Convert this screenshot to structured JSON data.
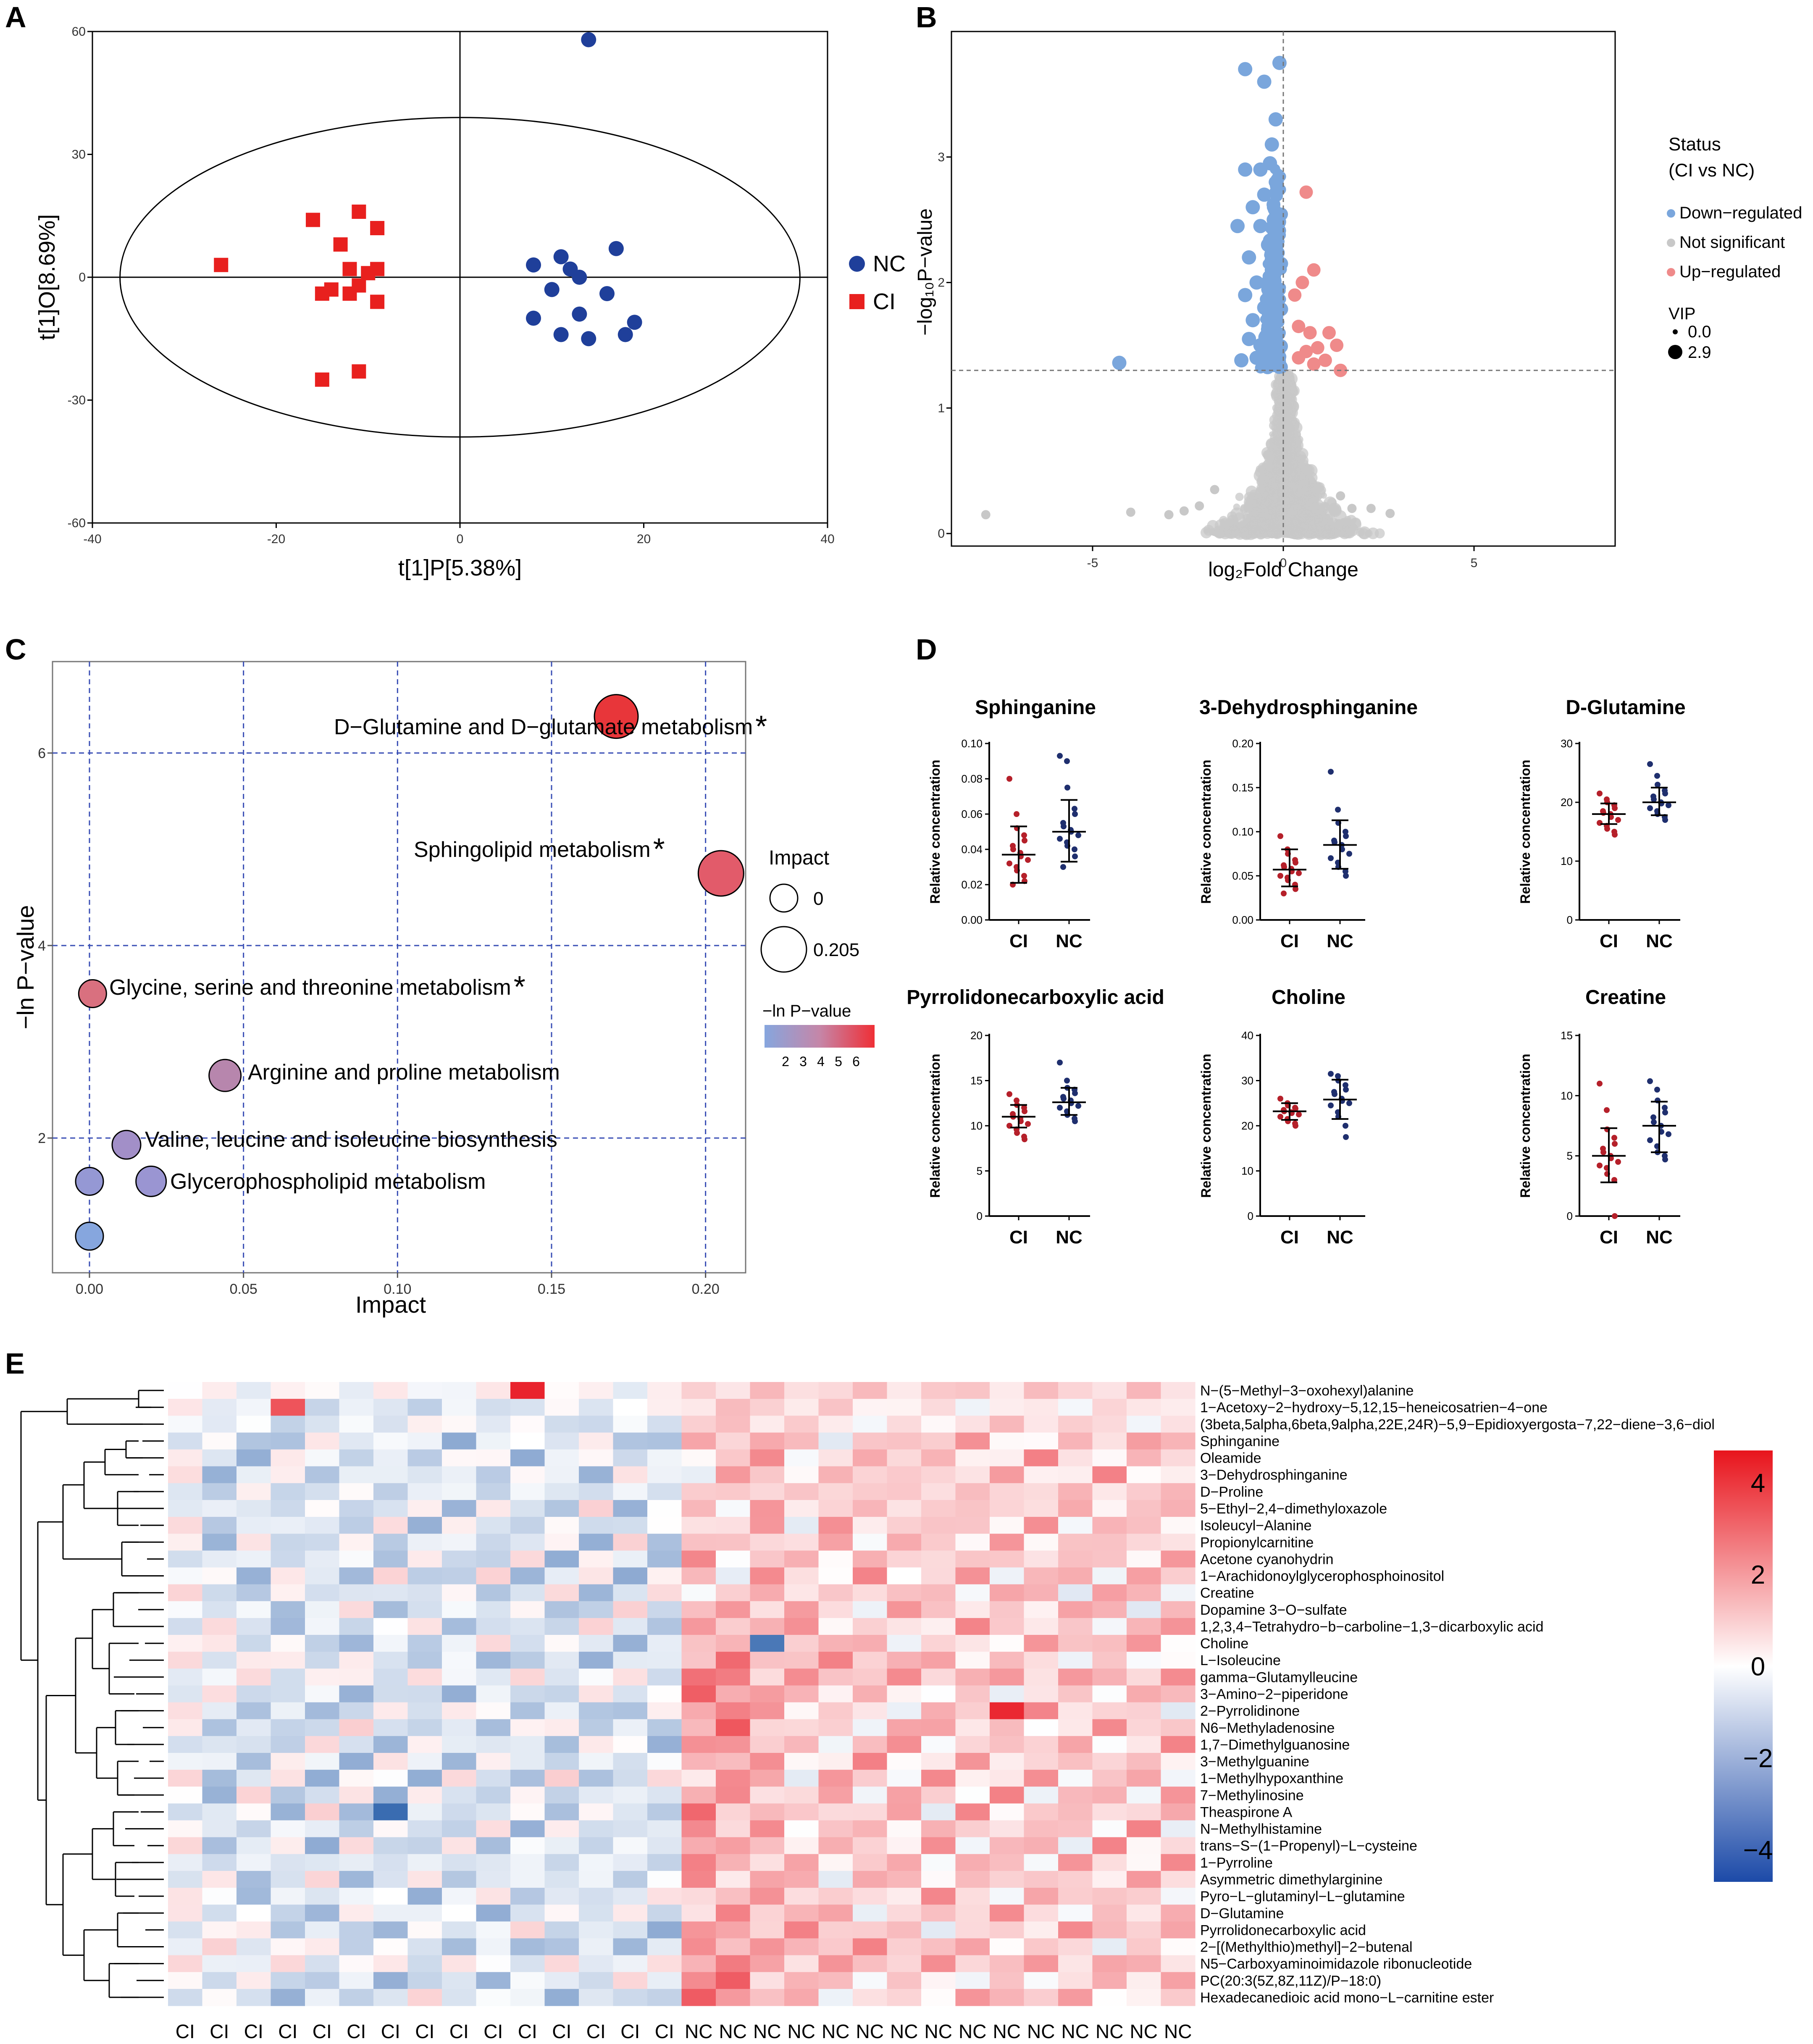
{
  "panels": {
    "A": "A",
    "B": "B",
    "C": "C",
    "D": "D",
    "E": "E"
  },
  "chart_data": [
    {
      "id": "A",
      "type": "scatter",
      "xlabel": "t[1]P[5.38%]",
      "ylabel": "t[1]O[8.69%]",
      "xlim": [
        -40,
        40
      ],
      "ylim": [
        -60,
        60
      ],
      "xticks": [
        -40,
        -20,
        0,
        20,
        40
      ],
      "yticks": [
        60,
        30,
        0,
        -30,
        -60
      ],
      "ellipse": {
        "cx": 0,
        "cy": 0,
        "rx": 37,
        "ry": 39
      },
      "legend": [
        "NC",
        "CI"
      ],
      "colors": {
        "NC": "#1f3f9a",
        "CI": "#e8201e"
      },
      "series": [
        {
          "name": "CI",
          "marker": "square",
          "points": [
            [
              -26,
              3
            ],
            [
              -16,
              14
            ],
            [
              -13,
              8
            ],
            [
              -11,
              16
            ],
            [
              -9,
              12
            ],
            [
              -15,
              -4
            ],
            [
              -12,
              2
            ],
            [
              -14,
              -3
            ],
            [
              -10,
              1
            ],
            [
              -11,
              -2
            ],
            [
              -12,
              -4
            ],
            [
              -9,
              2
            ],
            [
              -9,
              -6
            ],
            [
              -15,
              -25
            ],
            [
              -11,
              -23
            ]
          ]
        },
        {
          "name": "NC",
          "marker": "circle",
          "points": [
            [
              14,
              58
            ],
            [
              8,
              3
            ],
            [
              11,
              5
            ],
            [
              12,
              2
            ],
            [
              13,
              0
            ],
            [
              17,
              7
            ],
            [
              10,
              -3
            ],
            [
              8,
              -10
            ],
            [
              13,
              -9
            ],
            [
              16,
              -4
            ],
            [
              11,
              -14
            ],
            [
              14,
              -15
            ],
            [
              18,
              -14
            ],
            [
              19,
              -11
            ]
          ]
        }
      ]
    },
    {
      "id": "B",
      "type": "scatter",
      "xlabel": "log₂Fold Change",
      "ylabel": "−log₁₀P−value",
      "xlim": [
        -8.7,
        8.7
      ],
      "ylim": [
        -0.1,
        4.0
      ],
      "xticks": [
        -5,
        0,
        5
      ],
      "yticks": [
        0,
        1,
        2,
        3
      ],
      "threshold_y": 1.3,
      "legend_title": "Status",
      "legend_subtitle": "(CI vs NC)",
      "legend": [
        "Down−regulated",
        "Not significant",
        "Up−regulated"
      ],
      "colors": {
        "down": "#7aa6dc",
        "ns": "#c8c8c8",
        "up": "#ef8a8a"
      },
      "vip_title": "VIP",
      "vip_values": [
        "0.0",
        "2.9"
      ],
      "up_points": [
        [
          0.6,
          2.72
        ],
        [
          0.4,
          1.65
        ],
        [
          0.7,
          1.6
        ],
        [
          0.9,
          1.48
        ],
        [
          1.2,
          1.6
        ],
        [
          1.4,
          1.5
        ],
        [
          0.6,
          1.45
        ],
        [
          0.4,
          1.4
        ],
        [
          0.8,
          1.35
        ],
        [
          1.1,
          1.38
        ],
        [
          1.5,
          1.3
        ],
        [
          0.5,
          2.0
        ],
        [
          0.8,
          2.1
        ],
        [
          0.3,
          1.9
        ]
      ],
      "down_points": [
        [
          -1.0,
          3.7
        ],
        [
          -0.1,
          3.75
        ],
        [
          -0.5,
          3.6
        ],
        [
          -0.2,
          3.3
        ],
        [
          -0.3,
          3.1
        ],
        [
          -0.35,
          2.95
        ],
        [
          -0.6,
          2.9
        ],
        [
          -1.0,
          2.9
        ],
        [
          -0.5,
          2.7
        ],
        [
          -0.8,
          2.6
        ],
        [
          -0.25,
          2.5
        ],
        [
          -0.6,
          2.45
        ],
        [
          -1.2,
          2.45
        ],
        [
          -0.4,
          2.3
        ],
        [
          -0.9,
          2.2
        ],
        [
          -0.3,
          2.1
        ],
        [
          -0.7,
          2.0
        ],
        [
          -1.0,
          1.9
        ],
        [
          -0.5,
          1.8
        ],
        [
          -0.2,
          1.75
        ],
        [
          -0.8,
          1.7
        ],
        [
          -0.4,
          1.6
        ],
        [
          -0.6,
          1.5
        ],
        [
          -0.9,
          1.55
        ],
        [
          -0.3,
          1.45
        ],
        [
          -0.7,
          1.4
        ],
        [
          -1.1,
          1.38
        ],
        [
          -0.5,
          1.35
        ],
        [
          -4.3,
          1.36
        ]
      ]
    },
    {
      "id": "C",
      "type": "scatter",
      "xlabel": "Impact",
      "ylabel": "−ln P−value",
      "xlim": [
        -0.012,
        0.213
      ],
      "ylim": [
        0.6,
        6.95
      ],
      "xticks": [
        "0.00",
        "0.05",
        "0.10",
        "0.15",
        "0.20"
      ],
      "yticks": [
        2,
        4,
        6
      ],
      "size_legend_title": "Impact",
      "size_legend_values": [
        "0",
        "0.205"
      ],
      "color_legend_title": "−ln P−value",
      "color_legend_ticks": [
        "2",
        "3",
        "4",
        "5",
        "6"
      ],
      "points": [
        {
          "label": "D−Glutamine and D−glutamate metabolism",
          "star": "*",
          "impact": 0.171,
          "value": 6.38,
          "color": "#e8363a",
          "r": 52
        },
        {
          "label": "Sphingolipid metabolism",
          "star": "*",
          "impact": 0.205,
          "value": 4.75,
          "color": "#e25b6a",
          "r": 54
        },
        {
          "label": "Glycine, serine and threonine metabolism",
          "star": "*",
          "impact": 0.001,
          "value": 3.5,
          "color": "#d9707f",
          "r": 33
        },
        {
          "label": "Arginine and proline metabolism",
          "star": "",
          "impact": 0.044,
          "value": 2.65,
          "color": "#b786ad",
          "r": 38
        },
        {
          "label": "Valine, leucine and isoleucine biosynthesis",
          "star": "",
          "impact": 0.012,
          "value": 1.93,
          "color": "#a28fc8",
          "r": 34
        },
        {
          "label": "Glycerophospholipid metabolism",
          "star": "",
          "impact": 0.02,
          "value": 1.55,
          "color": "#9a95d2",
          "r": 36
        },
        {
          "label": "",
          "star": "",
          "impact": 0.0,
          "value": 1.55,
          "color": "#9598d4",
          "r": 33
        },
        {
          "label": "",
          "star": "",
          "impact": 0.0,
          "value": 0.98,
          "color": "#86a6de",
          "r": 33
        }
      ]
    },
    {
      "id": "D",
      "type": "scatter",
      "ylabel": "Relative concentration",
      "groups": [
        "CI",
        "NC"
      ],
      "colors": {
        "CI": "#b5202a",
        "NC": "#1f2f6e"
      },
      "subplots": [
        {
          "title": "Sphinganine",
          "ylim": [
            0,
            0.1
          ],
          "yticks": [
            "0.00",
            "0.02",
            "0.04",
            "0.06",
            "0.08",
            "0.10"
          ],
          "CI": [
            0.08,
            0.06,
            0.052,
            0.048,
            0.045,
            0.042,
            0.04,
            0.038,
            0.036,
            0.034,
            0.032,
            0.03,
            0.028,
            0.025,
            0.022,
            0.02
          ],
          "NC": [
            0.093,
            0.09,
            0.075,
            0.063,
            0.06,
            0.055,
            0.053,
            0.051,
            0.05,
            0.048,
            0.046,
            0.044,
            0.042,
            0.04,
            0.036,
            0.03
          ],
          "CI_stats": [
            0.037,
            0.021,
            0.053
          ],
          "NC_stats": [
            0.05,
            0.033,
            0.068
          ]
        },
        {
          "title": "3-Dehydrosphinganine",
          "ylim": [
            0,
            0.2
          ],
          "yticks": [
            "0.00",
            "0.05",
            "0.10",
            "0.15",
            "0.20"
          ],
          "CI": [
            0.095,
            0.08,
            0.075,
            0.068,
            0.065,
            0.062,
            0.06,
            0.058,
            0.055,
            0.053,
            0.05,
            0.048,
            0.045,
            0.04,
            0.035,
            0.03
          ],
          "NC": [
            0.168,
            0.125,
            0.11,
            0.1,
            0.095,
            0.09,
            0.088,
            0.085,
            0.08,
            0.075,
            0.07,
            0.065,
            0.06,
            0.055,
            0.05
          ],
          "CI_stats": [
            0.057,
            0.038,
            0.08
          ],
          "NC_stats": [
            0.085,
            0.058,
            0.113
          ]
        },
        {
          "title": "D-Glutamine",
          "ylim": [
            0,
            30
          ],
          "yticks": [
            "0",
            "10",
            "20",
            "30"
          ],
          "CI": [
            21.5,
            20.5,
            20,
            19.5,
            19,
            18.5,
            18.2,
            18,
            17.5,
            17,
            16.5,
            16,
            15.5,
            15,
            14.5
          ],
          "NC": [
            26.5,
            24.5,
            23,
            22,
            21.5,
            21,
            20.5,
            20,
            19.8,
            19.5,
            19,
            18.5,
            18,
            17.5,
            17
          ],
          "CI_stats": [
            18.0,
            16.3,
            19.8
          ],
          "NC_stats": [
            20.0,
            17.8,
            22.5
          ]
        },
        {
          "title": "Pyrrolidonecarboxylic acid",
          "ylim": [
            0,
            20
          ],
          "yticks": [
            "0",
            "5",
            "10",
            "15",
            "20"
          ],
          "CI": [
            13.5,
            12.8,
            12.3,
            12,
            11.6,
            11.3,
            11,
            10.8,
            10.5,
            10.2,
            10,
            9.6,
            9.2,
            8.8,
            8.5
          ],
          "NC": [
            17,
            15,
            14.2,
            14,
            13.6,
            13.2,
            13,
            12.8,
            12.5,
            12.2,
            12,
            11.6,
            11.2,
            10.8,
            10.5
          ],
          "CI_stats": [
            11.0,
            9.8,
            12.3
          ],
          "NC_stats": [
            12.6,
            11.2,
            14.2
          ]
        },
        {
          "title": "Choline",
          "ylim": [
            0,
            40
          ],
          "yticks": [
            "0",
            "10",
            "20",
            "30",
            "40"
          ],
          "CI": [
            26,
            25,
            24.5,
            24,
            23.8,
            23.5,
            23.2,
            23,
            22.8,
            22.5,
            22,
            21.5,
            21,
            20.5,
            20
          ],
          "NC": [
            31.5,
            31,
            30,
            29,
            28,
            27.5,
            27,
            26,
            25.5,
            25,
            24.5,
            23,
            22,
            20,
            17.5
          ],
          "CI_stats": [
            23.2,
            21.3,
            25.0
          ],
          "NC_stats": [
            25.8,
            21.5,
            30.2
          ]
        },
        {
          "title": "Creatine",
          "ylim": [
            0,
            15
          ],
          "yticks": [
            "0",
            "5",
            "10",
            "15"
          ],
          "CI": [
            11,
            8.8,
            7.2,
            6.5,
            6,
            5.6,
            5.3,
            5,
            4.8,
            4.5,
            4.2,
            4,
            3.5,
            3,
            0
          ],
          "NC": [
            11.2,
            10.5,
            9.6,
            9,
            8.6,
            8.2,
            7.8,
            7.5,
            7,
            6.8,
            6.3,
            5.8,
            5.3,
            5,
            4.7
          ],
          "CI_stats": [
            5.0,
            2.8,
            7.3
          ],
          "NC_stats": [
            7.5,
            5.3,
            9.5
          ]
        }
      ]
    },
    {
      "id": "E",
      "type": "heatmap",
      "colorbar_ticks": [
        "4",
        "2",
        "0",
        "−2",
        "−4"
      ],
      "columns": [
        "CI",
        "CI",
        "CI",
        "CI",
        "CI",
        "CI",
        "CI",
        "CI",
        "CI",
        "CI",
        "CI",
        "CI",
        "CI",
        "CI",
        "CI",
        "NC",
        "NC",
        "NC",
        "NC",
        "NC",
        "NC",
        "NC",
        "NC",
        "NC",
        "NC",
        "NC",
        "NC",
        "NC",
        "NC",
        "NC"
      ],
      "rows": [
        "N−(5−Methyl−3−oxohexyl)alanine",
        "1−Acetoxy−2−hydroxy−5,12,15−heneicosatrien−4−one",
        "(3beta,5alpha,6beta,9alpha,22E,24R)−5,9−Epidioxyergosta−7,22−diene−3,6−diol",
        "Sphinganine",
        "Oleamide",
        "3−Dehydrosphinganine",
        "D−Proline",
        "5−Ethyl−2,4−dimethyloxazole",
        "Isoleucyl−Alanine",
        "Propionylcarnitine",
        "Acetone cyanohydrin",
        "1−Arachidonoylglycerophosphoinositol",
        "Creatine",
        "Dopamine 3−O−sulfate",
        "1,2,3,4−Tetrahydro−b−carboline−1,3−dicarboxylic acid",
        "Choline",
        "L−Isoleucine",
        "gamma−Glutamylleucine",
        "3−Amino−2−piperidone",
        "2−Pyrrolidinone",
        "N6−Methyladenosine",
        "1,7−Dimethylguanosine",
        "3−Methylguanine",
        "1−Methylhypoxanthine",
        "7−Methylinosine",
        "Theaspirone A",
        "N−Methylhistamine",
        "trans−S−(1−Propenyl)−L−cysteine",
        "1−Pyrroline",
        "Asymmetric dimethylarginine",
        "Pyro−L−glutaminyl−L−glutamine",
        "D−Glutamine",
        "Pyrrolidonecarboxylic acid",
        "2−[(Methylthio)methyl]−2−butenal",
        "N5−Carboxyaminoimidazole ribonucleotide",
        "PC(20:3(5Z,8Z,11Z)/P−18:0)",
        "Hexadecanedioic acid mono−L−carnitine ester"
      ]
    }
  ]
}
